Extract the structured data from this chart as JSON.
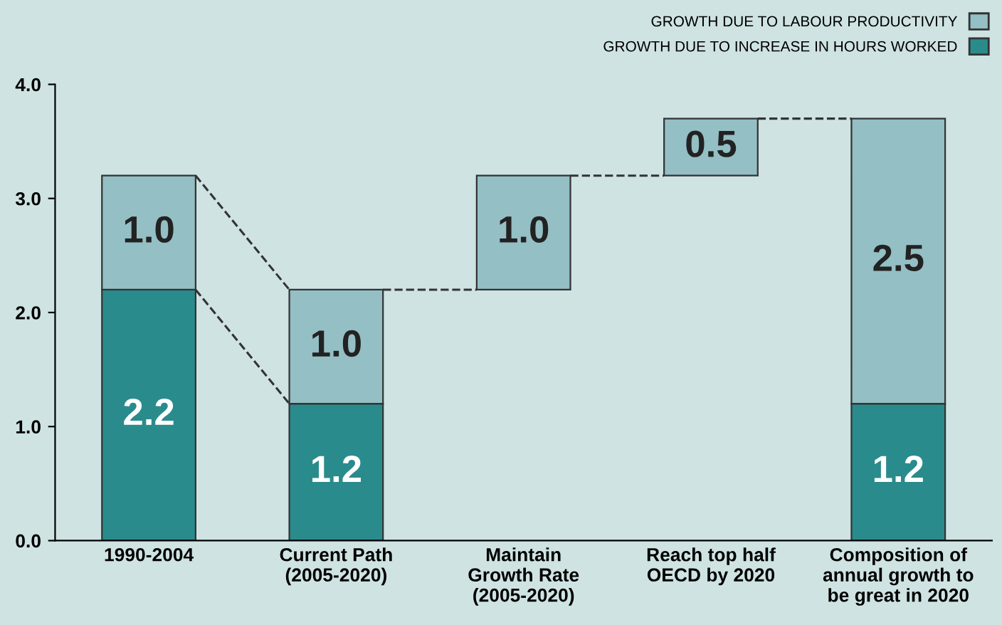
{
  "chart_data": {
    "type": "bar",
    "stacked": true,
    "categories": [
      "1990-2004",
      "Current Path\n(2005-2020)",
      "Maintain\nGrowth Rate\n(2005-2020)",
      "Reach top half\nOECD by 2020",
      "Composition of\nannual growth to\nbe great in 2020"
    ],
    "series": [
      {
        "name": "GROWTH DUE TO INCREASE IN HOURS WORKED",
        "color": "#2a8b8c",
        "values": [
          2.2,
          1.2,
          null,
          null,
          1.2
        ],
        "value_labels": [
          "2.2",
          "1.2",
          null,
          null,
          "1.2"
        ]
      },
      {
        "name": "GROWTH DUE TO LABOUR PRODUCTIVITY",
        "color": "#94bfc4",
        "base": [
          null,
          null,
          2.2,
          3.2,
          null
        ],
        "values": [
          1.0,
          1.0,
          1.0,
          0.5,
          2.5
        ],
        "value_labels": [
          "1.0",
          "1.0",
          "1.0",
          "0.5",
          "2.5"
        ]
      }
    ],
    "ylim": [
      0,
      4
    ],
    "yticks": [
      {
        "value": 0,
        "label": "0.0"
      },
      {
        "value": 1,
        "label": "1.0"
      },
      {
        "value": 2,
        "label": "2.0"
      },
      {
        "value": 3,
        "label": "3.0"
      },
      {
        "value": 4,
        "label": "4.0"
      }
    ],
    "grid": false,
    "legend": "top right"
  }
}
